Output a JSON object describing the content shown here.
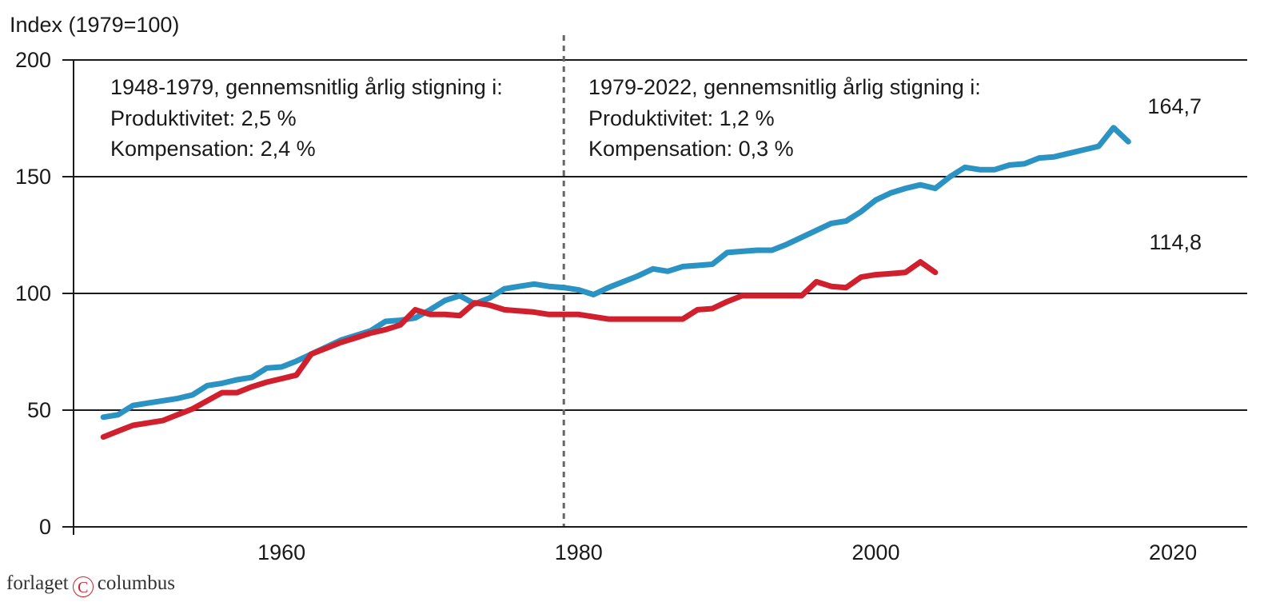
{
  "colors": {
    "productivity": "#2b93c3",
    "compensation": "#d0202e",
    "axis": "#1a1a1a",
    "divider": "#666666"
  },
  "chart_data": {
    "type": "line",
    "ylabel": "Index (1979=100)",
    "ylim": [
      0,
      200
    ],
    "yticks": [
      0,
      50,
      100,
      150,
      200
    ],
    "xlim": [
      1946,
      2025
    ],
    "xticks": [
      1960,
      1980,
      2000,
      2020
    ],
    "grid": "horizontal",
    "divider_year": 1979,
    "annotations": {
      "left": [
        "1948-1979, gennemsnitlig årlig stigning i:",
        "Produktivitet: 2,5 %",
        "Kompensation: 2,4 %"
      ],
      "right": [
        "1979-2022, gennemsnitlig årlig stigning i:",
        "Produktivitet: 1,2 %",
        "Kompensation: 0,3 %"
      ]
    },
    "end_labels": {
      "productivity": "164,7",
      "compensation": "114,8"
    },
    "series": [
      {
        "name": "Produktivitet",
        "color_key": "productivity",
        "points": [
          [
            1948,
            47
          ],
          [
            1949,
            48
          ],
          [
            1950,
            52
          ],
          [
            1951,
            53
          ],
          [
            1952,
            54
          ],
          [
            1953,
            55
          ],
          [
            1954,
            56.5
          ],
          [
            1955,
            60.5
          ],
          [
            1956,
            61.5
          ],
          [
            1957,
            63
          ],
          [
            1958,
            64
          ],
          [
            1959,
            68
          ],
          [
            1960,
            68.5
          ],
          [
            1961,
            71
          ],
          [
            1962,
            74
          ],
          [
            1963,
            77
          ],
          [
            1964,
            80
          ],
          [
            1965,
            82
          ],
          [
            1966,
            84
          ],
          [
            1967,
            88
          ],
          [
            1968,
            88.5
          ],
          [
            1969,
            89.5
          ],
          [
            1970,
            93
          ],
          [
            1971,
            97
          ],
          [
            1972,
            99
          ],
          [
            1973,
            95.5
          ],
          [
            1974,
            98
          ],
          [
            1975,
            102
          ],
          [
            1976,
            103
          ],
          [
            1977,
            104
          ],
          [
            1978,
            103
          ],
          [
            1979,
            102.5
          ],
          [
            1980,
            101.5
          ],
          [
            1981,
            99.5
          ],
          [
            1982,
            102.5
          ],
          [
            1983,
            105
          ],
          [
            1984,
            107.5
          ],
          [
            1985,
            110.5
          ],
          [
            1986,
            109.5
          ],
          [
            1987,
            111.5
          ],
          [
            1988,
            112
          ],
          [
            1989,
            112.5
          ],
          [
            1990,
            117.5
          ],
          [
            1991,
            118
          ],
          [
            1992,
            118.5
          ],
          [
            1993,
            118.5
          ],
          [
            1994,
            121
          ],
          [
            1995,
            124
          ],
          [
            1996,
            127
          ],
          [
            1997,
            130
          ],
          [
            1998,
            131
          ],
          [
            1999,
            135
          ],
          [
            2000,
            140
          ],
          [
            2001,
            143
          ],
          [
            2002,
            145
          ],
          [
            2003,
            146.5
          ],
          [
            2004,
            145
          ],
          [
            2005,
            150
          ],
          [
            2006,
            154
          ],
          [
            2007,
            153
          ],
          [
            2008,
            153
          ],
          [
            2009,
            155
          ],
          [
            2010,
            155.5
          ],
          [
            2011,
            158
          ],
          [
            2012,
            158.5
          ],
          [
            2013,
            160
          ],
          [
            2014,
            161.5
          ],
          [
            2015,
            163
          ],
          [
            2016,
            171
          ],
          [
            2017,
            165
          ]
        ]
      },
      {
        "name": "Kompensation",
        "color_key": "compensation",
        "points": [
          [
            1948,
            38.5
          ],
          [
            1949,
            41
          ],
          [
            1950,
            43.5
          ],
          [
            1951,
            44.5
          ],
          [
            1952,
            45.5
          ],
          [
            1953,
            48
          ],
          [
            1954,
            50.5
          ],
          [
            1955,
            54
          ],
          [
            1956,
            57.5
          ],
          [
            1957,
            57.5
          ],
          [
            1958,
            60
          ],
          [
            1959,
            62
          ],
          [
            1960,
            63.5
          ],
          [
            1961,
            65
          ],
          [
            1962,
            74
          ],
          [
            1963,
            76.5
          ],
          [
            1964,
            79
          ],
          [
            1965,
            81
          ],
          [
            1966,
            83
          ],
          [
            1967,
            84.5
          ],
          [
            1968,
            86.5
          ],
          [
            1969,
            93
          ],
          [
            1970,
            91
          ],
          [
            1971,
            91
          ],
          [
            1972,
            90.5
          ],
          [
            1973,
            96
          ],
          [
            1974,
            95
          ],
          [
            1975,
            93
          ],
          [
            1976,
            92.5
          ],
          [
            1977,
            92
          ],
          [
            1978,
            91
          ],
          [
            1979,
            91
          ],
          [
            1980,
            91
          ],
          [
            1981,
            90
          ],
          [
            1982,
            89
          ],
          [
            1983,
            89
          ],
          [
            1984,
            89
          ],
          [
            1985,
            89
          ],
          [
            1986,
            89
          ],
          [
            1987,
            89
          ],
          [
            1988,
            93
          ],
          [
            1989,
            93.5
          ],
          [
            1990,
            96.5
          ],
          [
            1991,
            99
          ],
          [
            1992,
            99
          ],
          [
            1993,
            99
          ],
          [
            1994,
            99
          ],
          [
            1995,
            99
          ],
          [
            1996,
            105
          ],
          [
            1997,
            103
          ],
          [
            1998,
            102.5
          ],
          [
            1999,
            107
          ],
          [
            2000,
            108
          ],
          [
            2001,
            108.5
          ],
          [
            2002,
            109
          ],
          [
            2003,
            113.5
          ],
          [
            2004,
            109
          ]
        ]
      }
    ]
  },
  "footer": {
    "brand_left": "forlaget",
    "brand_mark": "C",
    "brand_right": "columbus"
  }
}
